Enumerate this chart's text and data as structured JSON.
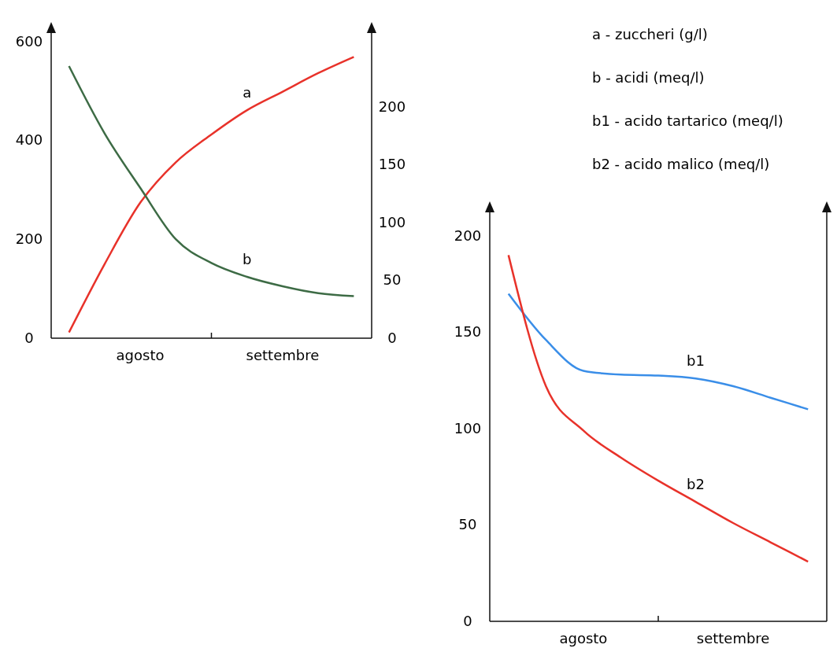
{
  "chart_data": [
    {
      "type": "line",
      "categories": [
        null,
        null,
        "agosto",
        null,
        null,
        null,
        "settembre",
        null,
        null
      ],
      "ylim": [
        0,
        620
      ],
      "yticks": [
        0,
        200,
        400,
        600
      ],
      "y2lim": [
        0,
        265
      ],
      "y2ticks": [
        0,
        50,
        100,
        150,
        200
      ],
      "annotations": [
        "a - zuccheri (g/l)",
        "b - acidi (meq/l)",
        "b1 - acido tartarico (meq/l)",
        "b2 - acido malico (meq/l)"
      ],
      "series": [
        {
          "name": "a",
          "color": "#e8322a",
          "axis": "y2",
          "values": [
            5,
            64,
            117,
            152,
            176,
            197,
            213,
            229,
            243
          ]
        },
        {
          "name": "b",
          "color": "#3d6b45",
          "values": [
            550,
            414,
            304,
            200,
            152,
            124,
            105,
            91,
            85
          ]
        }
      ]
    },
    {
      "type": "line",
      "categories": [
        null,
        null,
        "agosto",
        null,
        null,
        null,
        "settembre",
        null,
        null
      ],
      "ylim": [
        0,
        213
      ],
      "yticks": [
        0,
        50,
        100,
        150,
        200
      ],
      "series": [
        {
          "name": "b1",
          "color": "#3a8ee8",
          "values": [
            170,
            146,
            130,
            128,
            127.5,
            126,
            122,
            116,
            110
          ]
        },
        {
          "name": "b2",
          "color": "#e8322a",
          "values": [
            190,
            122,
            99,
            85,
            73,
            62,
            51,
            41,
            31
          ]
        }
      ]
    }
  ]
}
